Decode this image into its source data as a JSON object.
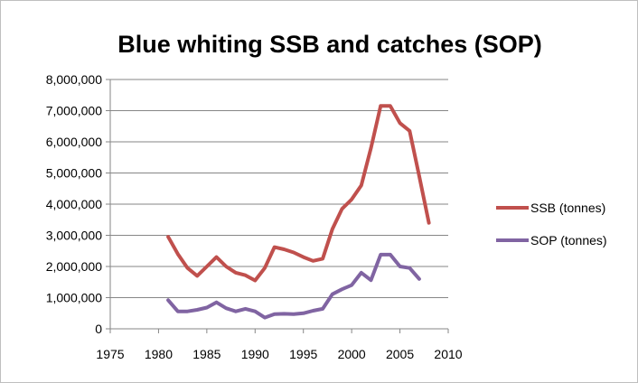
{
  "chart_data": {
    "type": "line",
    "title": "Blue whiting SSB and catches (SOP)",
    "xlabel": "",
    "ylabel": "",
    "xlim": [
      1975,
      2010
    ],
    "ylim": [
      0,
      8000000
    ],
    "x_ticks": [
      1975,
      1980,
      1985,
      1990,
      1995,
      2000,
      2005,
      2010
    ],
    "y_ticks": [
      0,
      1000000,
      2000000,
      3000000,
      4000000,
      5000000,
      6000000,
      7000000,
      8000000
    ],
    "y_tick_labels": [
      "0",
      "1,000,000",
      "2,000,000",
      "3,000,000",
      "4,000,000",
      "5,000,000",
      "6,000,000",
      "7,000,000",
      "8,000,000"
    ],
    "x_tick_labels": [
      "1975",
      "1980",
      "1985",
      "1990",
      "1995",
      "2000",
      "2005",
      "2010"
    ],
    "grid": "horizontal",
    "legend_position": "right",
    "series": [
      {
        "name": "SSB (tonnes)",
        "color": "#c0504d",
        "x": [
          1981,
          1982,
          1983,
          1984,
          1985,
          1986,
          1987,
          1988,
          1989,
          1990,
          1991,
          1992,
          1993,
          1994,
          1995,
          1996,
          1997,
          1998,
          1999,
          2000,
          2001,
          2002,
          2003,
          2004,
          2005,
          2006,
          2007,
          2008
        ],
        "y": [
          2950000,
          2400000,
          1950000,
          1700000,
          2000000,
          2300000,
          2000000,
          1800000,
          1720000,
          1550000,
          1950000,
          2620000,
          2550000,
          2450000,
          2300000,
          2180000,
          2250000,
          3200000,
          3850000,
          4150000,
          4600000,
          5800000,
          7150000,
          7150000,
          6600000,
          6350000,
          4900000,
          3400000
        ]
      },
      {
        "name": "SOP (tonnes)",
        "color": "#8064a2",
        "x": [
          1981,
          1982,
          1983,
          1984,
          1985,
          1986,
          1987,
          1988,
          1989,
          1990,
          1991,
          1992,
          1993,
          1994,
          1995,
          1996,
          1997,
          1998,
          1999,
          2000,
          2001,
          2002,
          2003,
          2004,
          2005,
          2006,
          2007
        ],
        "y": [
          920000,
          560000,
          560000,
          610000,
          680000,
          850000,
          660000,
          560000,
          640000,
          560000,
          360000,
          470000,
          480000,
          470000,
          500000,
          580000,
          640000,
          1110000,
          1270000,
          1400000,
          1800000,
          1560000,
          2380000,
          2380000,
          2000000,
          1950000,
          1600000
        ]
      }
    ]
  }
}
